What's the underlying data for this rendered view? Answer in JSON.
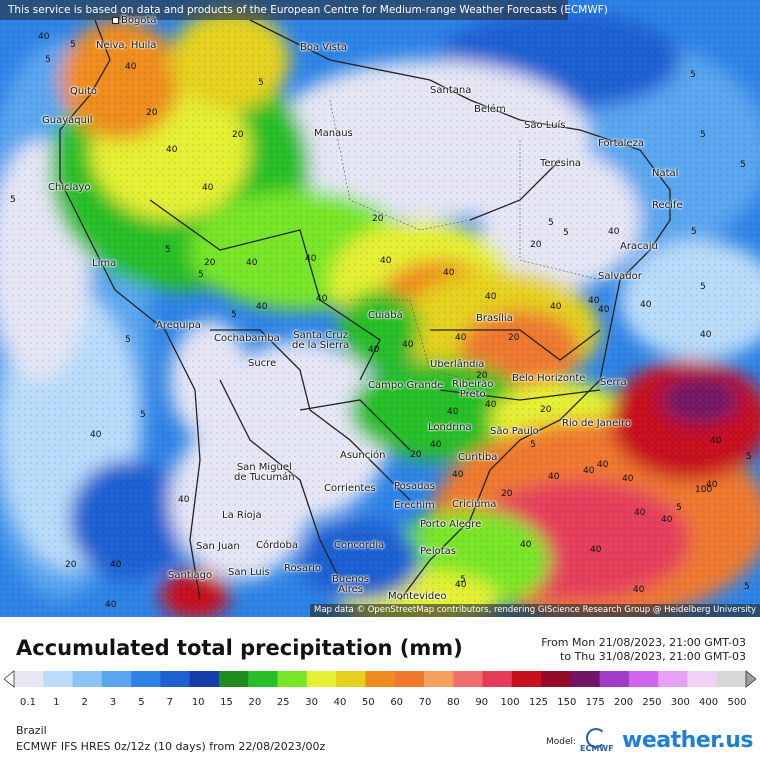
{
  "attribution_top": "This service is based on data and products of the European Centre for Medium-range Weather Forecasts (ECMWF)",
  "attribution_bottom": "Map data © OpenStreetMap contributors, rendering GIScience Research Group @ Heidelberg University",
  "title": "Accumulated total precipitation (mm)",
  "period_from": "From Mon 21/08/2023, 21:00 GMT-03",
  "period_to": "to Thu 31/08/2023, 21:00 GMT-03",
  "region": "Brazil",
  "model_run": "ECMWF IFS HRES 0z/12z (10 days) from 22/08/2023/00z",
  "model_label": "Model:",
  "model_logo_text": "ECMWF",
  "brand": "weather.us",
  "legend": {
    "values": [
      "0.1",
      "1",
      "2",
      "3",
      "5",
      "7",
      "10",
      "15",
      "20",
      "25",
      "30",
      "40",
      "50",
      "60",
      "70",
      "80",
      "90",
      "100",
      "125",
      "150",
      "175",
      "200",
      "250",
      "300",
      "400",
      "500"
    ],
    "colors": [
      "#e6e6f5",
      "#b9dcfa",
      "#8cc3f5",
      "#5aa5f0",
      "#2d82e6",
      "#1e5fd2",
      "#143caa",
      "#1e8c1e",
      "#28be28",
      "#78e628",
      "#e6f032",
      "#e6d21e",
      "#f08c1e",
      "#f0782d",
      "#f5a05a",
      "#f06e6e",
      "#e63c5a",
      "#c80f1e",
      "#960a28",
      "#731464",
      "#a03cc8",
      "#d264f0",
      "#e6a0f5",
      "#f0d2f8",
      "#d7d7d7"
    ]
  },
  "cities": [
    {
      "name": "Bogotá"
    },
    {
      "name": "Neiva, Huila"
    },
    {
      "name": "Boa Vista"
    },
    {
      "name": "Quito"
    },
    {
      "name": "Guayaquil"
    },
    {
      "name": "Santana"
    },
    {
      "name": "Belém"
    },
    {
      "name": "Manaus"
    },
    {
      "name": "São Luís"
    },
    {
      "name": "Fortaleza"
    },
    {
      "name": "Teresina"
    },
    {
      "name": "Natal"
    },
    {
      "name": "Chiclayo"
    },
    {
      "name": "Recife"
    },
    {
      "name": "Aracaju"
    },
    {
      "name": "Lima"
    },
    {
      "name": "Salvador"
    },
    {
      "name": "Cuiabá"
    },
    {
      "name": "Brasília"
    },
    {
      "name": "Arequipa"
    },
    {
      "name": "Cochabamba"
    },
    {
      "name": "Santa Cruz"
    },
    {
      "name": "de la Sierra"
    },
    {
      "name": "Sucre"
    },
    {
      "name": "Uberlândia"
    },
    {
      "name": "Belo Horizonte"
    },
    {
      "name": "Serra"
    },
    {
      "name": "Campo Grande"
    },
    {
      "name": "Ribeirão"
    },
    {
      "name": "Preto"
    },
    {
      "name": "Londrina"
    },
    {
      "name": "São Paulo"
    },
    {
      "name": "Rio de Janeiro"
    },
    {
      "name": "Asunción"
    },
    {
      "name": "Curitiba"
    },
    {
      "name": "San Miguel"
    },
    {
      "name": "de Tucumán"
    },
    {
      "name": "Corrientes"
    },
    {
      "name": "Posadas"
    },
    {
      "name": "Erechim"
    },
    {
      "name": "Criciúma"
    },
    {
      "name": "La Rioja"
    },
    {
      "name": "Porto Alegre"
    },
    {
      "name": "San Juan"
    },
    {
      "name": "Córdoba"
    },
    {
      "name": "Concordia"
    },
    {
      "name": "Pelotas"
    },
    {
      "name": "Santiago"
    },
    {
      "name": "San Luis"
    },
    {
      "name": "Rosario"
    },
    {
      "name": "Buenos"
    },
    {
      "name": "Aires"
    },
    {
      "name": "Montevideo"
    }
  ],
  "contour_labels": [
    "40",
    "5",
    "5",
    "40",
    "20",
    "5",
    "20",
    "5",
    "40",
    "40",
    "5",
    "40",
    "5",
    "5",
    "40",
    "20",
    "40",
    "40",
    "5",
    "5",
    "40",
    "5",
    "40",
    "40",
    "5",
    "40",
    "20",
    "40",
    "40",
    "40",
    "20",
    "5",
    "5",
    "40",
    "40",
    "40",
    "40",
    "20",
    "5",
    "20",
    "40",
    "40",
    "40",
    "40",
    "5",
    "40",
    "40",
    "5",
    "40",
    "100",
    "40",
    "5",
    "40",
    "40",
    "40",
    "20",
    "5",
    "40",
    "40",
    "40",
    "20",
    "40",
    "40",
    "40",
    "5",
    "40",
    "40",
    "5",
    "20",
    "40",
    "40",
    "20",
    "5"
  ]
}
